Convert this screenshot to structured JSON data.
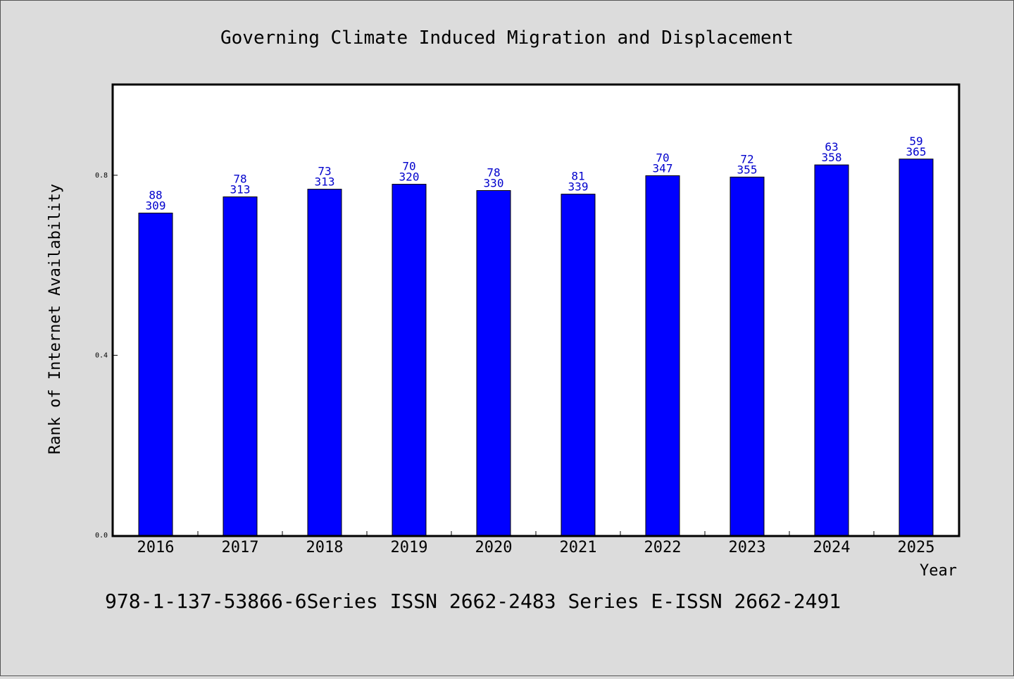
{
  "chart_data": {
    "type": "bar",
    "title": "Governing Climate Induced Migration and Displacement",
    "xlabel": "Year",
    "ylabel": "Rank of Internet Availability",
    "ylim": [
      0.0,
      1.0
    ],
    "yticks": [
      "0.0",
      "0.4",
      "0.8"
    ],
    "ytick_values": [
      0.0,
      0.4,
      0.8
    ],
    "categories": [
      "2016",
      "2017",
      "2018",
      "2019",
      "2020",
      "2021",
      "2022",
      "2023",
      "2024",
      "2025"
    ],
    "values": [
      0.716,
      0.752,
      0.769,
      0.78,
      0.766,
      0.758,
      0.799,
      0.796,
      0.823,
      0.836
    ],
    "labels_top": [
      "88",
      "78",
      "73",
      "70",
      "78",
      "81",
      "70",
      "72",
      "63",
      "59"
    ],
    "labels_bottom": [
      "309",
      "313",
      "313",
      "320",
      "330",
      "339",
      "347",
      "355",
      "358",
      "365"
    ],
    "grid": false,
    "bar_color": "#0000ff",
    "label_color": "#0000cc"
  },
  "footer": {
    "text": "978-1-137-53866-6Series ISSN 2662-2483 Series E-ISSN 2662-2491"
  }
}
